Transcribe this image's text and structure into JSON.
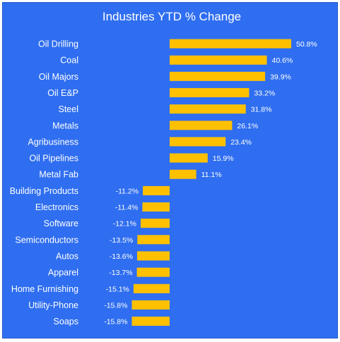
{
  "chart_data": {
    "type": "bar",
    "orientation": "horizontal",
    "title": "Industries YTD % Change",
    "xlabel": "",
    "ylabel": "",
    "grid": false,
    "legend": "none",
    "categories": [
      "Oil Drilling",
      "Coal",
      "Oil Majors",
      "Oil E&P",
      "Steel",
      "Metals",
      "Agribusiness",
      "Oil Pipelines",
      "Metal Fab",
      "Building Products",
      "Electronics",
      "Software",
      "Semiconductors",
      "Autos",
      "Apparel",
      "Home Furnishing",
      "Utility-Phone",
      "Soaps"
    ],
    "values": [
      50.8,
      40.6,
      39.9,
      33.2,
      31.8,
      26.1,
      23.4,
      15.9,
      11.1,
      -11.2,
      -11.4,
      -12.1,
      -13.5,
      -13.6,
      -13.7,
      -15.1,
      -15.8,
      -15.8
    ],
    "value_labels": [
      "50.8%",
      "40.6%",
      "39.9%",
      "33.2%",
      "31.8%",
      "26.1%",
      "23.4%",
      "15.9%",
      "11.1%",
      "-11.2%",
      "-11.4%",
      "-12.1%",
      "-13.5%",
      "-13.6%",
      "-13.7%",
      "-15.1%",
      "-15.8%",
      "-15.8%"
    ],
    "colors": {
      "background": "#2f6ef0",
      "bar": "#ffc000",
      "text": "#ffffff"
    }
  }
}
